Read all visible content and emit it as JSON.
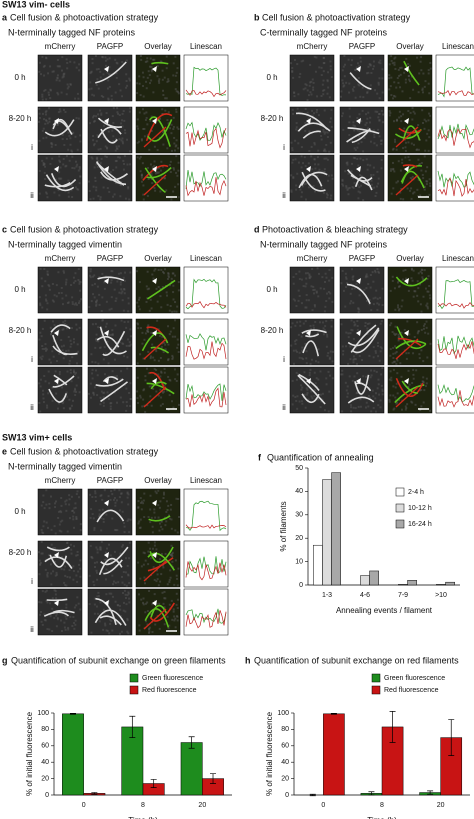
{
  "figure": {
    "headers": [
      "SW13 vim- cells",
      "SW13 vim+ cells"
    ],
    "columns": [
      "mCherry",
      "PAGFP",
      "Overlay",
      "Linescan"
    ],
    "rows": [
      "0 h",
      "8-20 h"
    ],
    "subrows": [
      "i",
      "ii"
    ]
  },
  "panels": [
    {
      "letter": "a",
      "title": "Cell fusion & photoactivation strategy",
      "subtitle": "N-terminally tagged NF proteins"
    },
    {
      "letter": "b",
      "title": "Cell fusion & photoactivation strategy",
      "subtitle": "C-terminally tagged NF proteins"
    },
    {
      "letter": "c",
      "title": "Cell fusion & photoactivation strategy",
      "subtitle": "N-terminally tagged vimentin"
    },
    {
      "letter": "d",
      "title": "Photoactivation & bleaching strategy",
      "subtitle": "N-terminally tagged NF proteins"
    },
    {
      "letter": "e",
      "title": "Cell fusion & photoactivation strategy",
      "subtitle": "N-terminally tagged vimentin"
    }
  ],
  "chart_data": [
    {
      "type": "bar",
      "letter": "f",
      "title": "Quantification of annealing",
      "x_label": "Annealing events / filament",
      "y_label": "% of filaments",
      "categories": [
        "1-3",
        "4-6",
        "7-9",
        ">10"
      ],
      "series": [
        {
          "name": "2-4 h",
          "color": "#ffffff",
          "values": [
            17,
            0,
            0,
            0
          ]
        },
        {
          "name": "10-12 h",
          "color": "#dcdcdc",
          "values": [
            45,
            4,
            0.3,
            0.3
          ]
        },
        {
          "name": "16-24 h",
          "color": "#a8a8a8",
          "values": [
            48,
            6,
            2,
            1.2
          ]
        }
      ],
      "ylim": [
        0,
        50
      ],
      "yticks": [
        0,
        10,
        20,
        30,
        40,
        50
      ],
      "legend": "right"
    },
    {
      "type": "bar",
      "letter": "g",
      "title": "Quantification of subunit exchange on green filaments",
      "x_label": "Time (h)",
      "y_label": "% of initial fluorescence",
      "categories": [
        "0",
        "8",
        "20"
      ],
      "series": [
        {
          "name": "Green fluorescence",
          "color": "#1e8c1e",
          "values": [
            99,
            83,
            64
          ],
          "errors": [
            0.5,
            13,
            7
          ]
        },
        {
          "name": "Red fluorescence",
          "color": "#c81414",
          "values": [
            2,
            14,
            20
          ],
          "errors": [
            1,
            5,
            6
          ]
        }
      ],
      "ylim": [
        0,
        100
      ],
      "yticks": [
        0,
        20,
        40,
        60,
        80,
        100
      ],
      "legend": "top"
    },
    {
      "type": "bar",
      "letter": "h",
      "title": "Quantification of subunit exchange on red filaments",
      "x_label": "Time (h)",
      "y_label": "% of initial fluorescence",
      "categories": [
        "0",
        "8",
        "20"
      ],
      "series": [
        {
          "name": "Green fluorescence",
          "color": "#1e8c1e",
          "values": [
            0,
            2,
            3
          ],
          "errors": [
            1,
            2,
            2
          ]
        },
        {
          "name": "Red fluorescence",
          "color": "#c81414",
          "values": [
            99,
            83,
            70
          ],
          "errors": [
            0.5,
            19,
            22
          ]
        }
      ],
      "ylim": [
        0,
        100
      ],
      "yticks": [
        0,
        20,
        40,
        60,
        80,
        100
      ],
      "legend": "top"
    }
  ]
}
